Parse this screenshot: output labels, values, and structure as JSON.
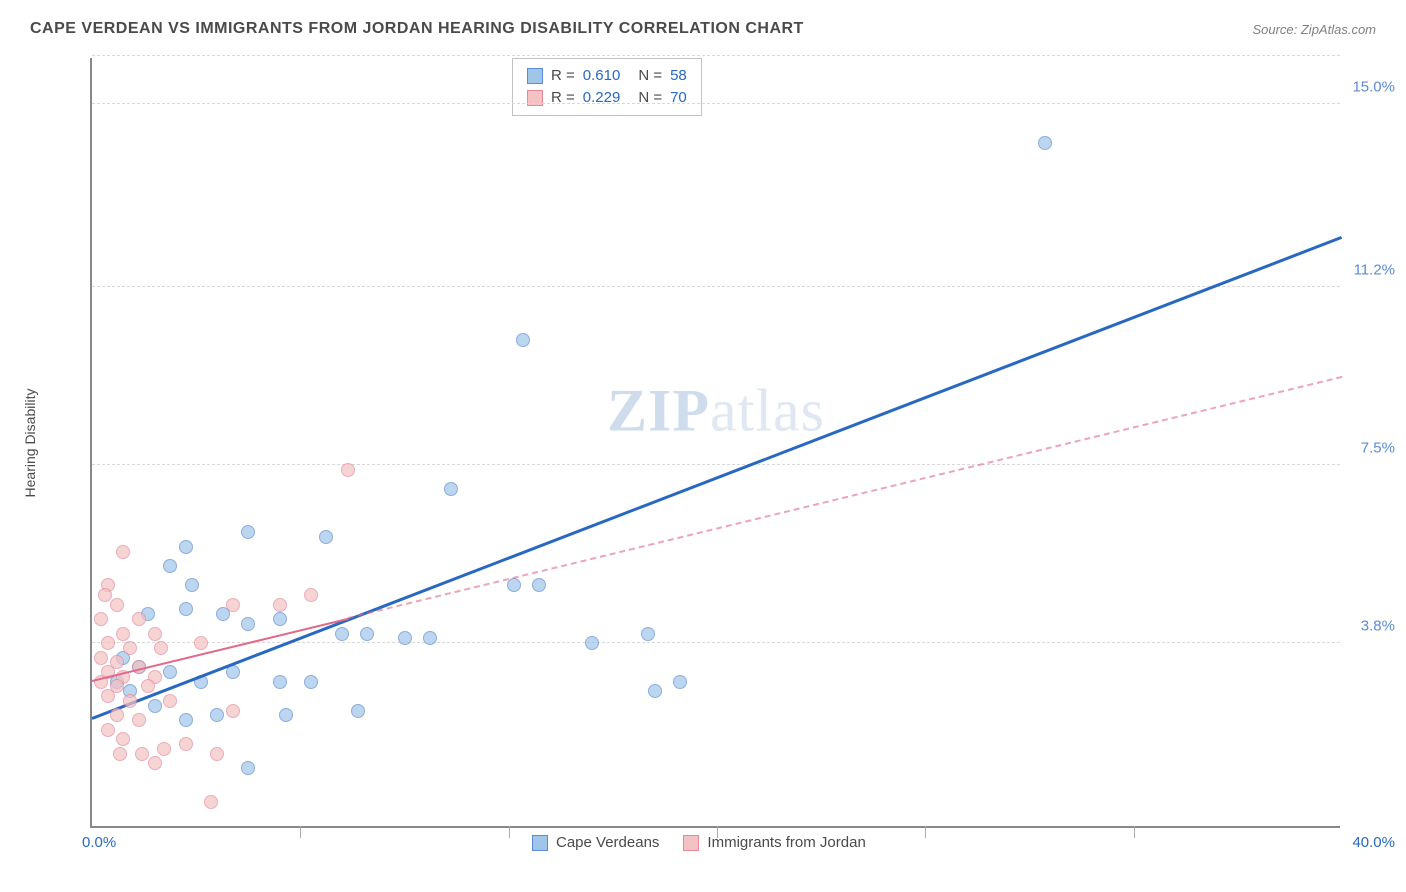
{
  "header": {
    "title": "CAPE VERDEAN VS IMMIGRANTS FROM JORDAN HEARING DISABILITY CORRELATION CHART",
    "source": "Source: ZipAtlas.com"
  },
  "chart": {
    "type": "scatter",
    "y_label": "Hearing Disability",
    "xlim": [
      0,
      40
    ],
    "ylim": [
      0,
      16
    ],
    "x_tick_labels": [
      {
        "pos": 0.0,
        "text": "0.0%",
        "color": "#2968c0"
      },
      {
        "pos": 40.0,
        "text": "40.0%",
        "color": "#2968c0"
      }
    ],
    "y_tick_labels": [
      {
        "pos": 3.8,
        "text": "3.8%",
        "color": "#5b8bd4"
      },
      {
        "pos": 7.5,
        "text": "7.5%",
        "color": "#5b8bd4"
      },
      {
        "pos": 11.2,
        "text": "11.2%",
        "color": "#5b8bd4"
      },
      {
        "pos": 15.0,
        "text": "15.0%",
        "color": "#5b8bd4"
      }
    ],
    "gridlines_h": [
      3.8,
      7.5,
      11.2,
      15.0,
      16.0
    ],
    "minor_ticks_x": [
      6.67,
      13.33,
      20,
      26.67,
      33.33
    ],
    "watermark": "ZIPatlas",
    "legend_top": {
      "rows": [
        {
          "swatch_fill": "#9fc5e8",
          "swatch_border": "#5b8bd4",
          "r_label": "R =",
          "r_val": "0.610",
          "n_label": "N =",
          "n_val": "58"
        },
        {
          "swatch_fill": "#f4c2c2",
          "swatch_border": "#e48a9b",
          "r_label": "R =",
          "r_val": "0.229",
          "n_label": "N =",
          "n_val": "70"
        }
      ]
    },
    "legend_bottom": [
      {
        "swatch_fill": "#9fc5e8",
        "swatch_border": "#5b8bd4",
        "label": "Cape Verdeans"
      },
      {
        "swatch_fill": "#f4c2c2",
        "swatch_border": "#e48a9b",
        "label": "Immigrants from Jordan"
      }
    ],
    "series": [
      {
        "name": "cape-verdeans",
        "color_fill": "#9fc5e8",
        "color_border": "#5b8bd4",
        "r": 0.61,
        "n": 58,
        "trend_solid": true,
        "trend_color": "#2968c0",
        "trend_start": {
          "x": 0,
          "y": 2.2
        },
        "trend_end": {
          "x": 40,
          "y": 12.2
        },
        "solid_extent": 40,
        "points": [
          {
            "x": 30.5,
            "y": 14.2
          },
          {
            "x": 13.8,
            "y": 10.1
          },
          {
            "x": 5.0,
            "y": 6.1
          },
          {
            "x": 11.5,
            "y": 7.0
          },
          {
            "x": 3.0,
            "y": 5.8
          },
          {
            "x": 7.5,
            "y": 6.0
          },
          {
            "x": 2.5,
            "y": 5.4
          },
          {
            "x": 3.2,
            "y": 5.0
          },
          {
            "x": 13.5,
            "y": 5.0
          },
          {
            "x": 14.3,
            "y": 5.0
          },
          {
            "x": 17.8,
            "y": 4.0
          },
          {
            "x": 8.0,
            "y": 4.0
          },
          {
            "x": 8.8,
            "y": 4.0
          },
          {
            "x": 10.0,
            "y": 3.9
          },
          {
            "x": 10.8,
            "y": 3.9
          },
          {
            "x": 5.0,
            "y": 4.2
          },
          {
            "x": 6.0,
            "y": 4.3
          },
          {
            "x": 3.0,
            "y": 4.5
          },
          {
            "x": 4.2,
            "y": 4.4
          },
          {
            "x": 1.8,
            "y": 4.4
          },
          {
            "x": 18.0,
            "y": 2.8
          },
          {
            "x": 18.8,
            "y": 3.0
          },
          {
            "x": 16.0,
            "y": 3.8
          },
          {
            "x": 7.0,
            "y": 3.0
          },
          {
            "x": 6.0,
            "y": 3.0
          },
          {
            "x": 4.5,
            "y": 3.2
          },
          {
            "x": 3.5,
            "y": 3.0
          },
          {
            "x": 2.5,
            "y": 3.2
          },
          {
            "x": 8.5,
            "y": 2.4
          },
          {
            "x": 3.0,
            "y": 2.2
          },
          {
            "x": 4.0,
            "y": 2.3
          },
          {
            "x": 6.2,
            "y": 2.3
          },
          {
            "x": 5.0,
            "y": 1.2
          },
          {
            "x": 1.0,
            "y": 3.5
          },
          {
            "x": 1.5,
            "y": 3.3
          },
          {
            "x": 0.8,
            "y": 3.0
          },
          {
            "x": 1.2,
            "y": 2.8
          },
          {
            "x": 2.0,
            "y": 2.5
          }
        ]
      },
      {
        "name": "immigrants-jordan",
        "color_fill": "#f4c2c2",
        "color_border": "#e48a9b",
        "r": 0.229,
        "n": 70,
        "trend_solid": false,
        "trend_color": "#e06a87",
        "trend_start": {
          "x": 0,
          "y": 3.0
        },
        "trend_end": {
          "x": 40,
          "y": 9.3
        },
        "solid_extent": 8.2,
        "points": [
          {
            "x": 8.2,
            "y": 7.4
          },
          {
            "x": 7.0,
            "y": 4.8
          },
          {
            "x": 1.0,
            "y": 5.7
          },
          {
            "x": 6.0,
            "y": 4.6
          },
          {
            "x": 4.5,
            "y": 4.6
          },
          {
            "x": 0.5,
            "y": 5.0
          },
          {
            "x": 0.8,
            "y": 4.6
          },
          {
            "x": 0.3,
            "y": 4.3
          },
          {
            "x": 1.5,
            "y": 4.3
          },
          {
            "x": 2.0,
            "y": 4.0
          },
          {
            "x": 1.0,
            "y": 4.0
          },
          {
            "x": 0.5,
            "y": 3.8
          },
          {
            "x": 1.2,
            "y": 3.7
          },
          {
            "x": 2.2,
            "y": 3.7
          },
          {
            "x": 3.5,
            "y": 3.8
          },
          {
            "x": 0.3,
            "y": 3.5
          },
          {
            "x": 0.8,
            "y": 3.4
          },
          {
            "x": 1.5,
            "y": 3.3
          },
          {
            "x": 0.5,
            "y": 3.2
          },
          {
            "x": 1.0,
            "y": 3.1
          },
          {
            "x": 2.0,
            "y": 3.1
          },
          {
            "x": 0.3,
            "y": 3.0
          },
          {
            "x": 0.8,
            "y": 2.9
          },
          {
            "x": 1.8,
            "y": 2.9
          },
          {
            "x": 0.5,
            "y": 2.7
          },
          {
            "x": 1.2,
            "y": 2.6
          },
          {
            "x": 2.5,
            "y": 2.6
          },
          {
            "x": 4.5,
            "y": 2.4
          },
          {
            "x": 0.8,
            "y": 2.3
          },
          {
            "x": 1.5,
            "y": 2.2
          },
          {
            "x": 3.0,
            "y": 1.7
          },
          {
            "x": 2.3,
            "y": 1.6
          },
          {
            "x": 1.6,
            "y": 1.5
          },
          {
            "x": 4.0,
            "y": 1.5
          },
          {
            "x": 0.9,
            "y": 1.5
          },
          {
            "x": 2.0,
            "y": 1.3
          },
          {
            "x": 3.8,
            "y": 0.5
          },
          {
            "x": 1.0,
            "y": 1.8
          },
          {
            "x": 0.5,
            "y": 2.0
          },
          {
            "x": 0.4,
            "y": 4.8
          }
        ]
      }
    ]
  }
}
